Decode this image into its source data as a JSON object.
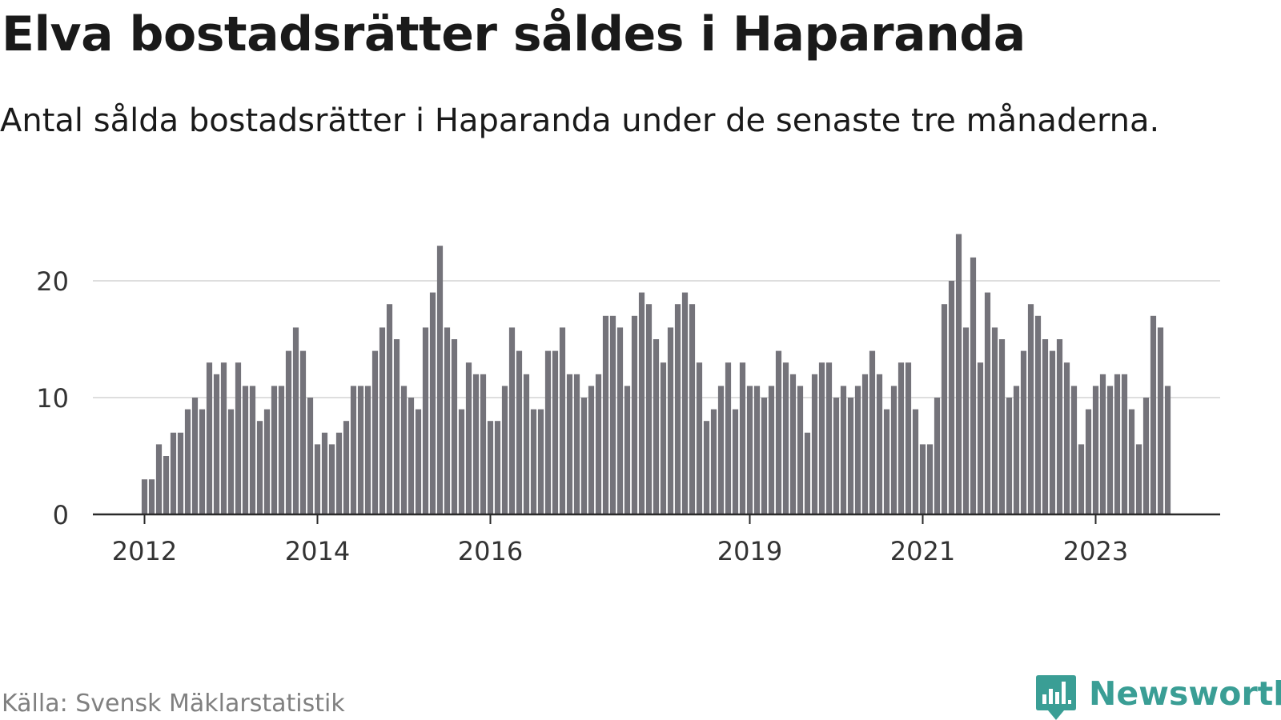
{
  "title": "Elva bostadsrätter såldes i Haparanda",
  "subtitle": "Antal sålda bostadsrätter i Haparanda under de senaste tre månaderna.",
  "source": "Källa: Svensk Mäklarstatistik",
  "brand": {
    "name": "Newsworthy",
    "icon": "newsworthy-chart-bubble-icon"
  },
  "colors": {
    "bar": "#74737a",
    "highlight": "#1fa39a",
    "grid": "#dedede",
    "axis": "#2a2a2a",
    "tick_text": "#333333",
    "brand": "#3a9e95"
  },
  "chart_data": {
    "type": "bar",
    "title": "Elva bostadsrätter såldes i Haparanda",
    "xlabel": "",
    "ylabel": "",
    "ylim": [
      0,
      25
    ],
    "yticks": [
      0,
      10,
      20
    ],
    "ytick_labels": [
      "0",
      "10",
      "20"
    ],
    "xtick_labels": [
      {
        "label": "2012",
        "index": 0
      },
      {
        "label": "2014",
        "index": 24
      },
      {
        "label": "2016",
        "index": 48
      },
      {
        "label": "2019",
        "index": 84
      },
      {
        "label": "2021",
        "index": 108
      },
      {
        "label": "2023",
        "index": 132
      }
    ],
    "grid": true,
    "legend": "none",
    "series": [
      {
        "name": "Antal sålda bostadsrätter",
        "values": [
          3,
          3,
          6,
          5,
          7,
          7,
          9,
          10,
          9,
          13,
          12,
          13,
          9,
          13,
          11,
          11,
          8,
          9,
          11,
          11,
          14,
          16,
          14,
          10,
          6,
          7,
          6,
          7,
          8,
          11,
          11,
          11,
          14,
          16,
          18,
          15,
          11,
          10,
          9,
          16,
          19,
          23,
          16,
          15,
          9,
          13,
          12,
          12,
          8,
          8,
          11,
          16,
          14,
          12,
          9,
          9,
          14,
          14,
          16,
          12,
          12,
          10,
          11,
          12,
          17,
          17,
          16,
          11,
          17,
          19,
          18,
          15,
          13,
          16,
          18,
          19,
          18,
          13,
          8,
          9,
          11,
          13,
          9,
          13,
          11,
          11,
          10,
          11,
          14,
          13,
          12,
          11,
          7,
          12,
          13,
          13,
          10,
          11,
          10,
          11,
          12,
          14,
          12,
          9,
          11,
          13,
          13,
          9,
          6,
          6,
          10,
          18,
          20,
          24,
          16,
          22,
          13,
          19,
          16,
          15,
          10,
          11,
          14,
          18,
          17,
          15,
          14,
          15,
          13,
          11,
          6,
          9,
          11,
          12,
          11,
          12,
          12,
          9,
          6,
          10,
          17,
          16,
          11
        ]
      }
    ],
    "highlight": {
      "index": 143,
      "label": "11"
    }
  }
}
